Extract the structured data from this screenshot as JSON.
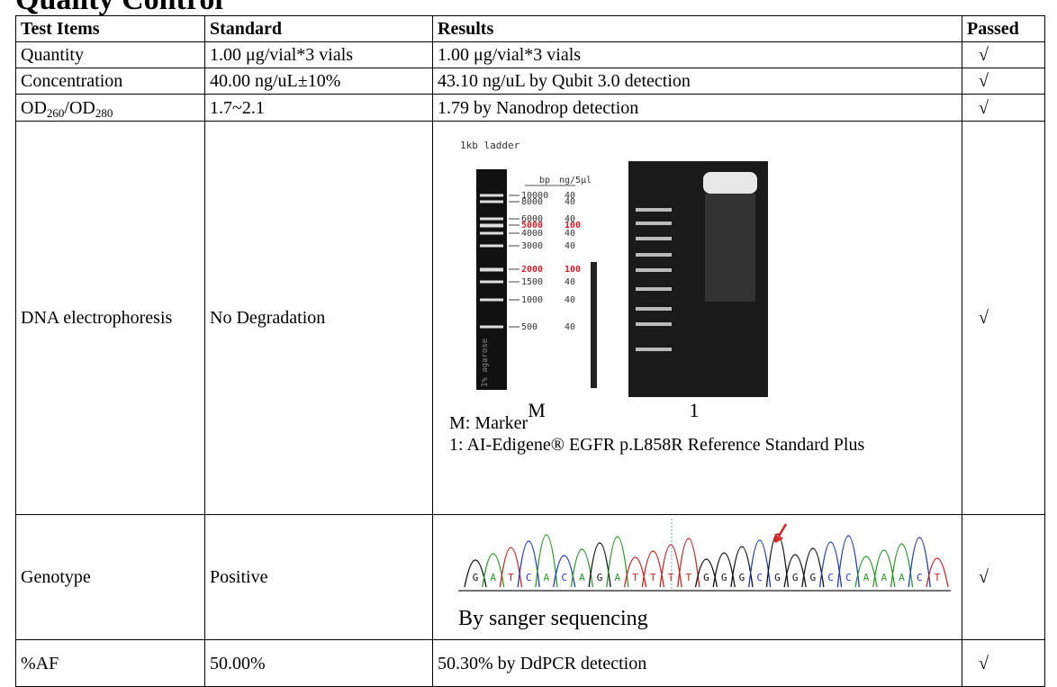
{
  "title": "Quality Control",
  "table": {
    "header": [
      "Test Items",
      "Standard",
      "Results",
      "Passed"
    ],
    "rows": [
      [
        "Quantity",
        "1.00 μg/vial*3 vials",
        "1.00 μg/vial*3 vials",
        "√"
      ],
      [
        "Concentration",
        "40.00 ng/uL±10%",
        "43.10 ng/uL by Qubit 3.0 detection",
        "√"
      ],
      [
        [
          "OD",
          "260",
          "/OD",
          "280"
        ],
        "1.7~2.1",
        "1.79 by Nanodrop detection",
        "√"
      ],
      [
        "DNA electrophoresis",
        "No Degradation",
        {
          "gel": {
            "ladder_title": "1kb ladder",
            "columns": [
              "bp",
              "ng/5μl"
            ],
            "bands": [
              [
                "10000",
                "40"
              ],
              [
                "8000",
                "40"
              ],
              [
                "6000",
                "40"
              ],
              [
                "5000",
                "100"
              ],
              [
                "4000",
                "40"
              ],
              [
                "3000",
                "40"
              ],
              [
                "2000",
                "100"
              ],
              [
                "1500",
                "40"
              ],
              [
                "1000",
                "40"
              ],
              [
                "500",
                "40"
              ]
            ],
            "agarose": "1% agarose"
          },
          "lanes": [
            "M",
            "1"
          ],
          "legend": [
            "M: Marker",
            "1: AI-Edigene® EGFR p.L858R Reference Standard Plus"
          ]
        },
        "√"
      ],
      [
        "Genotype",
        "Positive",
        {
          "sequence": [
            "G",
            "A",
            "T",
            "C",
            "A",
            "C",
            "A",
            "G",
            "A",
            "T",
            "T",
            "T",
            "T",
            "G",
            "G",
            "G",
            "C",
            "G",
            "G",
            "G",
            "C",
            "C",
            "A",
            "A",
            "A",
            "C",
            "T"
          ],
          "caption": "By sanger sequencing"
        },
        "√"
      ],
      [
        "%AF",
        "50.00%",
        "50.30% by DdPCR detection",
        "√"
      ]
    ]
  }
}
